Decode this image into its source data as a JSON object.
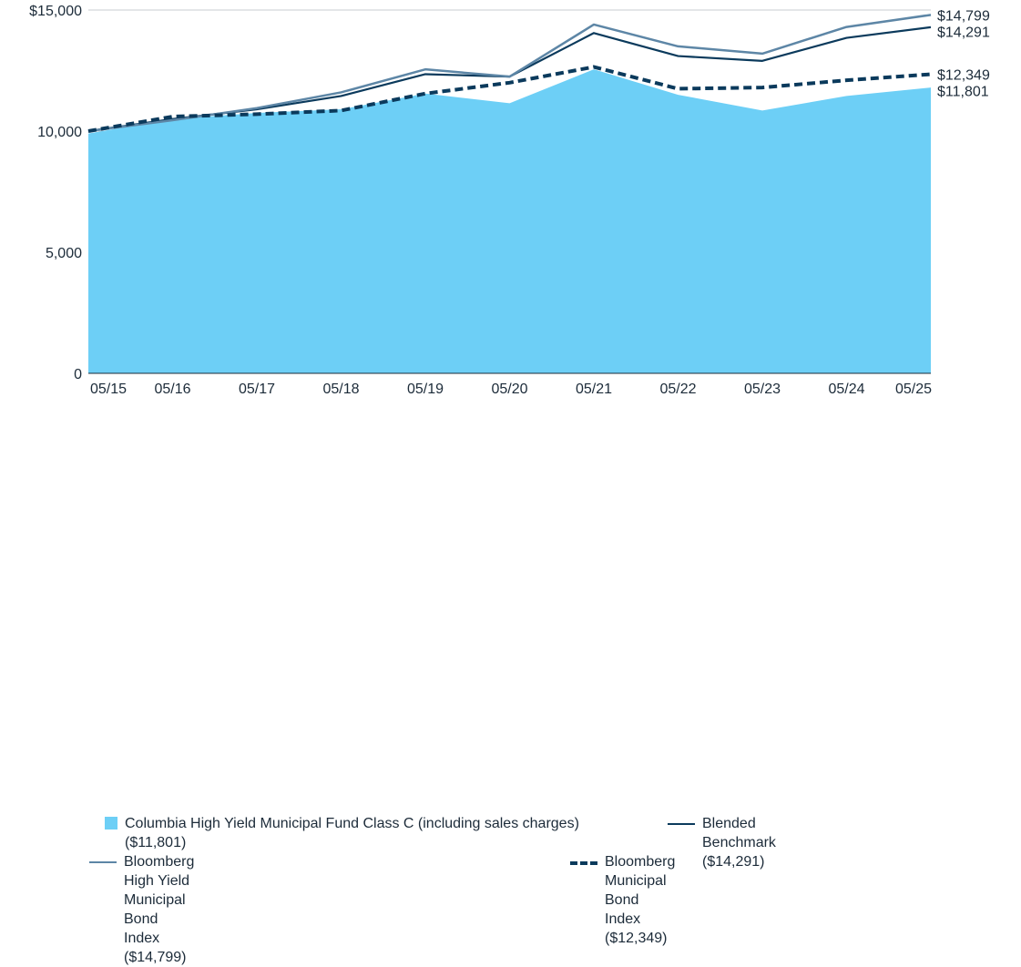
{
  "chart_data": {
    "type": "area",
    "x": [
      "05/15",
      "05/16",
      "05/17",
      "05/18",
      "05/19",
      "05/20",
      "05/21",
      "05/22",
      "05/23",
      "05/24",
      "05/25"
    ],
    "ylim": [
      0,
      15000
    ],
    "y_ticks": [
      {
        "value": 0,
        "label": "0"
      },
      {
        "value": 5000,
        "label": "5,000"
      },
      {
        "value": 10000,
        "label": "10,000"
      },
      {
        "value": 15000,
        "label": "$15,000"
      }
    ],
    "series": [
      {
        "name": "Columbia High Yield Municipal Fund Class C (including sales charges) ($11,801)",
        "style": "area",
        "color": "#6dcff6",
        "values": [
          9900,
          10500,
          10750,
          10900,
          11550,
          11150,
          12550,
          11500,
          10850,
          11450,
          11801
        ],
        "end_label": "$11,801"
      },
      {
        "name": "Blended Benchmark ($14,291)",
        "style": "solid",
        "color": "#0b3a5c",
        "values": [
          10000,
          10500,
          10900,
          11450,
          12350,
          12250,
          14050,
          13100,
          12900,
          13850,
          14291
        ],
        "end_label": "$14,291"
      },
      {
        "name": "Bloomberg High Yield Municipal Bond Index ($14,799)",
        "style": "solid-light",
        "color": "#5d86a6",
        "values": [
          10000,
          10450,
          10950,
          11600,
          12550,
          12250,
          14400,
          13500,
          13200,
          14300,
          14799
        ],
        "end_label": "$14,799"
      },
      {
        "name": "Bloomberg Municipal Bond Index ($12,349)",
        "style": "dashed",
        "color": "#0b3a5c",
        "values": [
          10000,
          10600,
          10700,
          10850,
          11550,
          12000,
          12650,
          11750,
          11800,
          12100,
          12349
        ],
        "end_label": "$12,349"
      }
    ],
    "legend": {
      "items": [
        {
          "label": "Columbia High Yield Municipal Fund Class C (including sales charges) ($11,801)",
          "series": 0
        },
        {
          "label": "Blended Benchmark ($14,291)",
          "series": 1
        },
        {
          "label": "Bloomberg High Yield Municipal Bond Index ($14,799)",
          "series": 2
        },
        {
          "label": "Bloomberg Municipal Bond Index ($12,349)",
          "series": 3
        }
      ],
      "placement": "bottom"
    },
    "grid": "horizontal"
  }
}
